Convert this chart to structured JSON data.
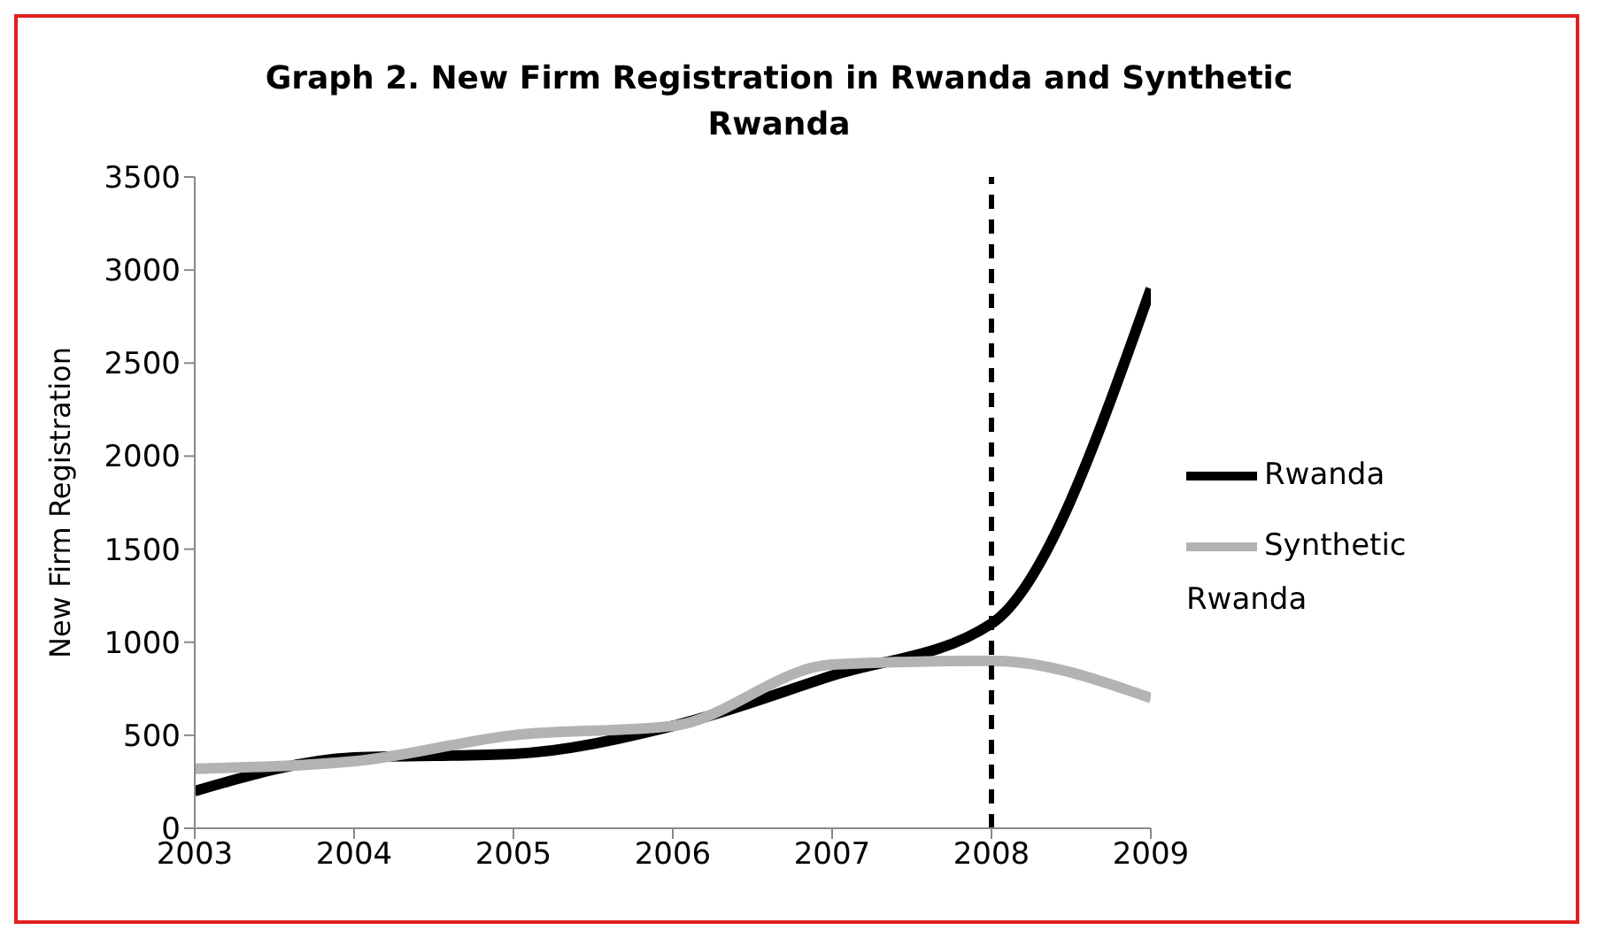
{
  "chart_data": {
    "type": "line",
    "title": "Graph 2. New Firm Registration in Rwanda and Synthetic Rwanda",
    "ylabel": "New Firm Registration",
    "x": [
      2003,
      2004,
      2005,
      2006,
      2007,
      2008,
      2009
    ],
    "series": [
      {
        "name": "Rwanda",
        "color": "#000000",
        "values": [
          200,
          380,
          400,
          550,
          820,
          1100,
          2900
        ]
      },
      {
        "name": "Synthetic Rwanda",
        "color": "#b3b3b3",
        "values": [
          320,
          360,
          500,
          550,
          880,
          900,
          700
        ]
      }
    ],
    "xlim": [
      2003,
      2009
    ],
    "xticks": [
      2003,
      2004,
      2005,
      2006,
      2007,
      2008,
      2009
    ],
    "ylim": [
      0,
      3500
    ],
    "yticks": [
      0,
      500,
      1000,
      1500,
      2000,
      2500,
      3000,
      3500
    ],
    "ref_lines": [
      {
        "axis": "x",
        "value": 2008,
        "color": "#000000",
        "line_style": "dashed"
      }
    ],
    "grid": false,
    "legend": "right",
    "marker": "none",
    "line_style": "solid"
  }
}
